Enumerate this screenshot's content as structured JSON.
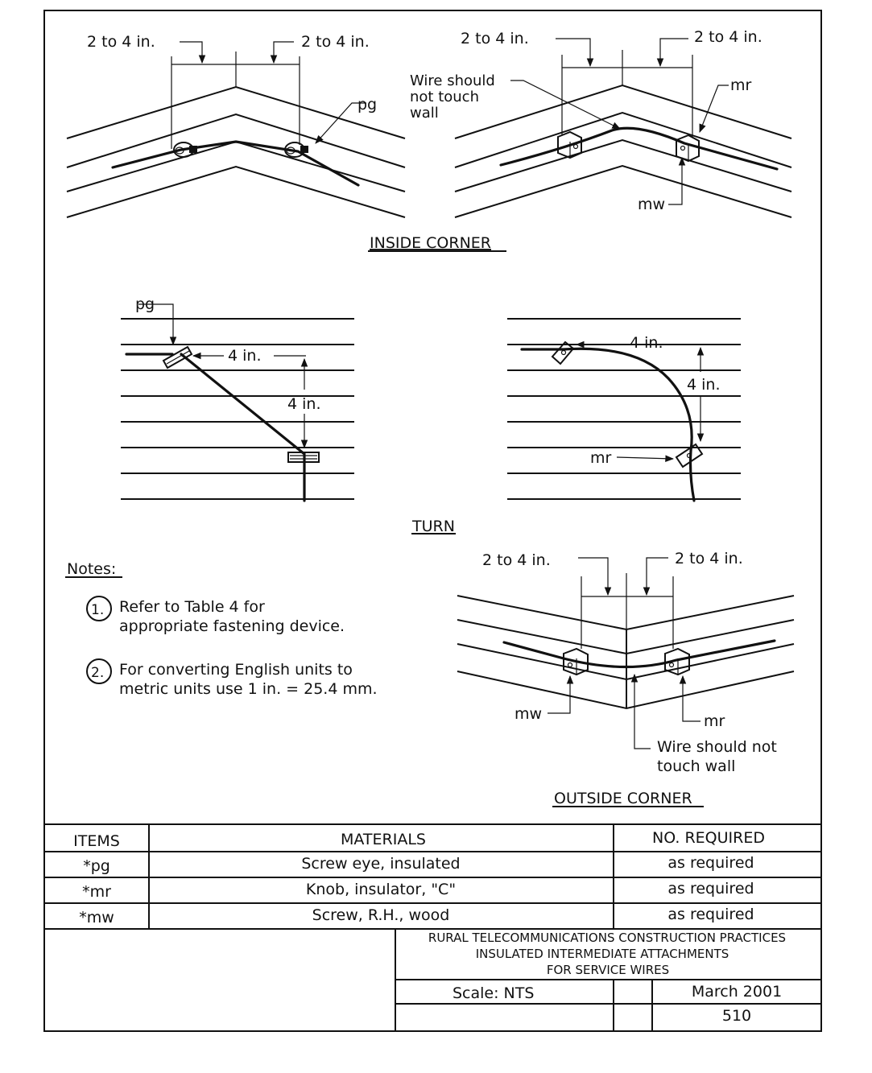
{
  "inside_corner": {
    "title": "INSIDE CORNER",
    "left": {
      "dim_left": "2 to 4 in.",
      "dim_right": "2 to 4 in.",
      "label_pg": "pg"
    },
    "right": {
      "dim_left": "2 to 4 in.",
      "dim_right": "2 to 4 in.",
      "note_lines": [
        "Wire should",
        "not touch",
        "wall"
      ],
      "label_mr": "mr",
      "label_mw": "mw"
    }
  },
  "turn": {
    "title": "TURN",
    "left": {
      "label_pg": "pg",
      "horizontal": "4 in.",
      "vertical": "4 in."
    },
    "right": {
      "horizontal": "4 in.",
      "vertical": "4 in.",
      "label_mr": "mr"
    }
  },
  "notes": {
    "heading": "Notes:",
    "items": [
      {
        "num": "1.",
        "lines": [
          "Refer to Table 4 for",
          "appropriate fastening device."
        ]
      },
      {
        "num": "2.",
        "lines": [
          "For converting English units to",
          "metric units use 1 in. = 25.4 mm."
        ]
      }
    ]
  },
  "outside_corner": {
    "title": "OUTSIDE CORNER",
    "dim_left": "2 to 4 in.",
    "dim_right": "2 to 4 in.",
    "label_mw": "mw",
    "label_mr": "mr",
    "note_lines": [
      "Wire should not",
      "touch wall"
    ]
  },
  "materials_table": {
    "headers": [
      "ITEMS",
      "MATERIALS",
      "NO. REQUIRED"
    ],
    "rows": [
      [
        "*pg",
        "Screw eye, insulated",
        "as required"
      ],
      [
        "*mr",
        "Knob, insulator, \"C\"",
        "as required"
      ],
      [
        "*mw",
        "Screw, R.H., wood",
        "as required"
      ]
    ]
  },
  "title_block": {
    "lines": [
      "RURAL TELECOMMUNICATIONS CONSTRUCTION PRACTICES",
      "INSULATED INTERMEDIATE ATTACHMENTS",
      "FOR SERVICE WIRES"
    ],
    "scale": "Scale:  NTS",
    "date": "March 2001",
    "number": "510"
  }
}
